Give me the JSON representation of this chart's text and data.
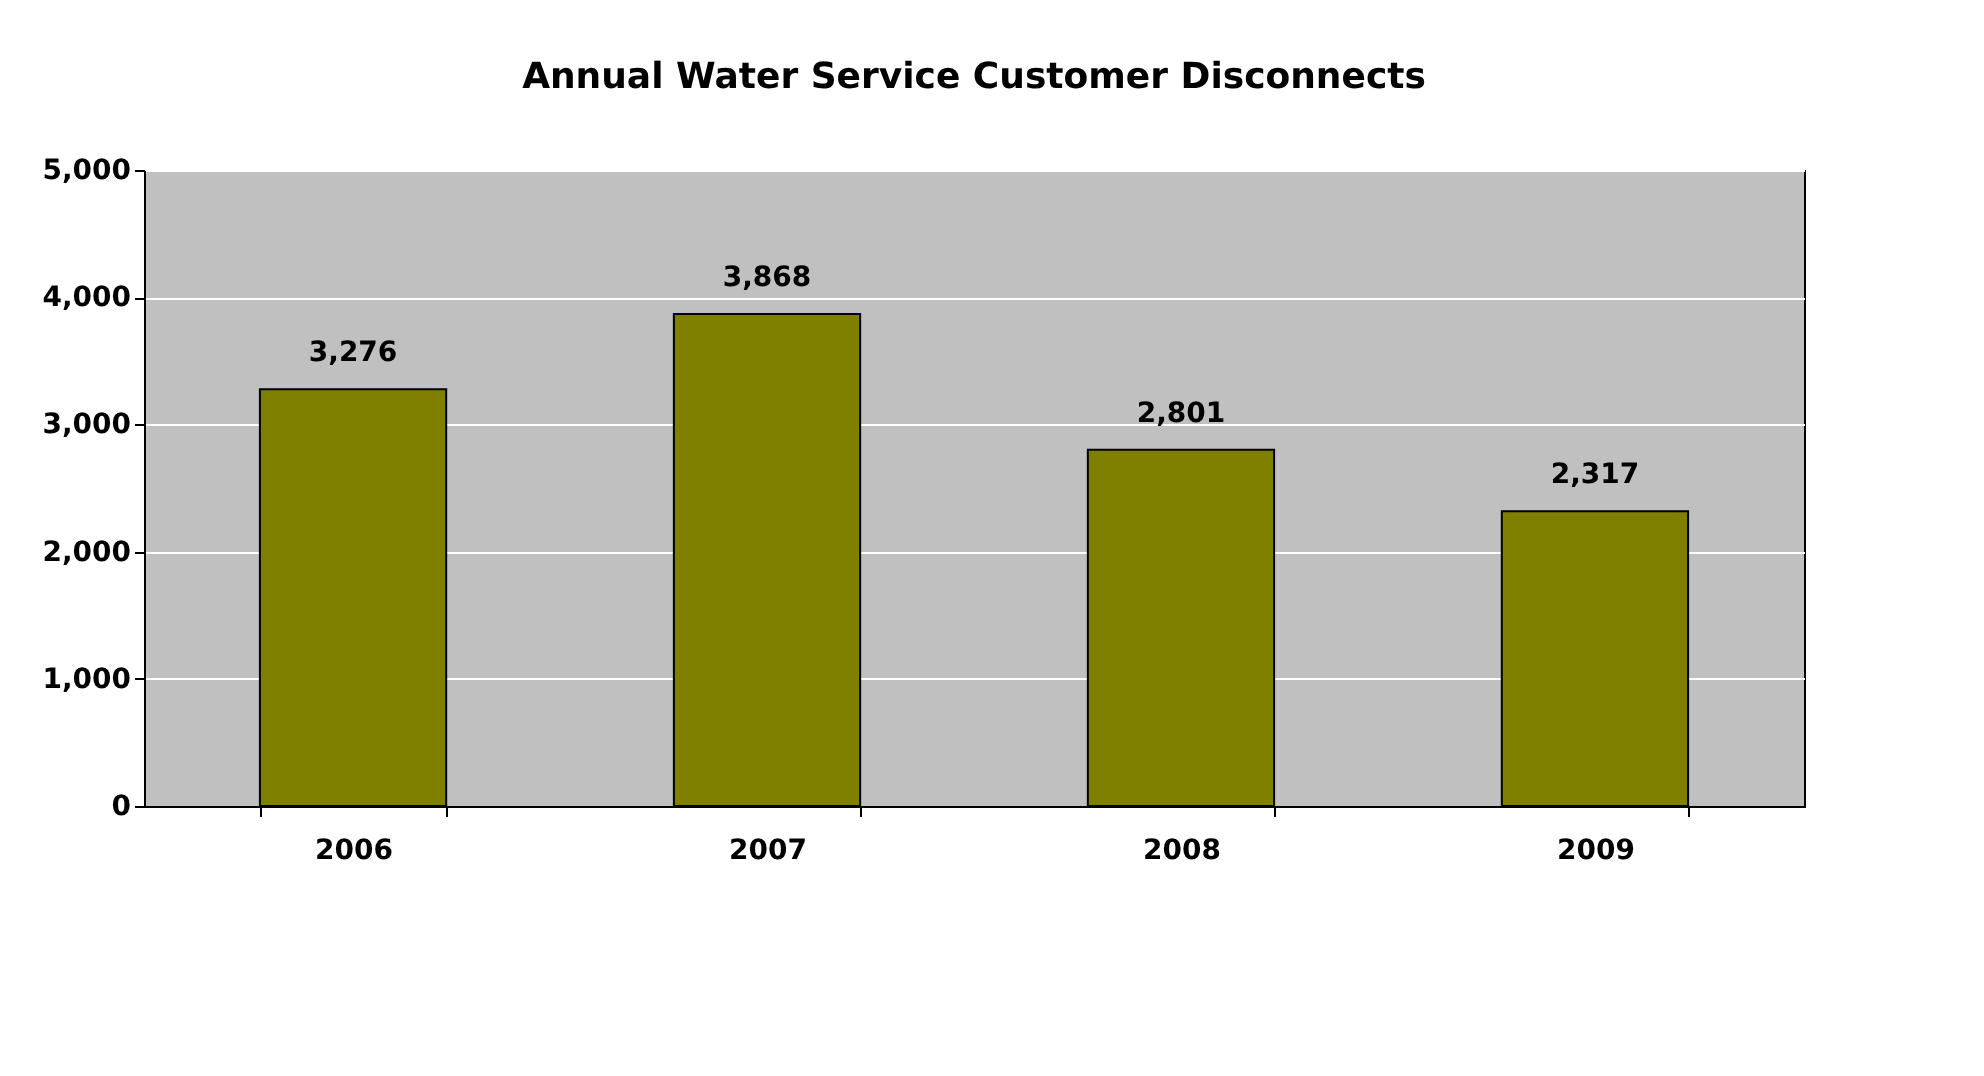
{
  "chart_data": {
    "type": "bar",
    "title": "Annual Water Service Customer Disconnects",
    "categories": [
      "2006",
      "2007",
      "2008",
      "2009"
    ],
    "values": [
      3276,
      3868,
      2801,
      2317
    ],
    "value_labels": [
      "3,276",
      "3,868",
      "2,801",
      "2,317"
    ],
    "color": "#808000",
    "ylim": [
      0,
      5000
    ],
    "yticks": [
      0,
      {
        "value": 1000,
        "label": "1,000"
      },
      {
        "value": 2000,
        "label": "2,000"
      },
      {
        "value": 3000,
        "label": "3,000"
      },
      {
        "value": 4000,
        "label": "4,000"
      },
      {
        "value": 5000,
        "label": "5,000"
      }
    ],
    "grid": "y"
  }
}
